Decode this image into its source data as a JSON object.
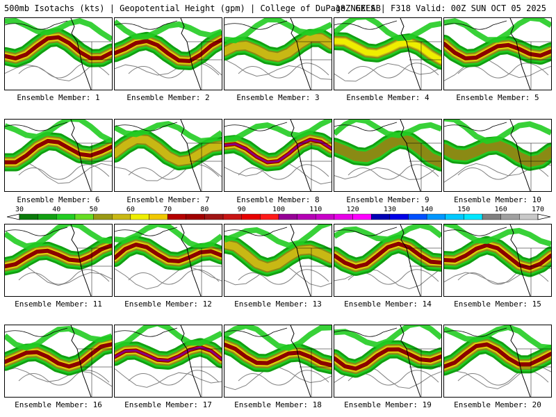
{
  "header": {
    "left_title": "500mb Isotachs (kts) | Geopotential Height (gpm) | College of DuPage NEXLAB",
    "right_title": "18Z GEFS | F318 Valid: 00Z SUN OCT 05 2025"
  },
  "panel_label_prefix": "Ensemble Member: ",
  "members": [
    {
      "label": "Ensemble Member: 1",
      "max_band": 6
    },
    {
      "label": "Ensemble Member: 2",
      "max_band": 6
    },
    {
      "label": "Ensemble Member: 3",
      "max_band": 4
    },
    {
      "label": "Ensemble Member: 4",
      "max_band": 5
    },
    {
      "label": "Ensemble Member: 5",
      "max_band": 6
    },
    {
      "label": "Ensemble Member: 6",
      "max_band": 6
    },
    {
      "label": "Ensemble Member: 7",
      "max_band": 4
    },
    {
      "label": "Ensemble Member: 8",
      "max_band": 8
    },
    {
      "label": "Ensemble Member: 9",
      "max_band": 3
    },
    {
      "label": "Ensemble Member: 10",
      "max_band": 3
    },
    {
      "label": "Ensemble Member: 11",
      "max_band": 6
    },
    {
      "label": "Ensemble Member: 12",
      "max_band": 6
    },
    {
      "label": "Ensemble Member: 13",
      "max_band": 4
    },
    {
      "label": "Ensemble Member: 14",
      "max_band": 6
    },
    {
      "label": "Ensemble Member: 15",
      "max_band": 6
    },
    {
      "label": "Ensemble Member: 16",
      "max_band": 6
    },
    {
      "label": "Ensemble Member: 17",
      "max_band": 8
    },
    {
      "label": "Ensemble Member: 18",
      "max_band": 6
    },
    {
      "label": "Ensemble Member: 19",
      "max_band": 6
    },
    {
      "label": "Ensemble Member: 20",
      "max_band": 6
    }
  ],
  "colorbar": {
    "ticks": [
      "30",
      "40",
      "50",
      "60",
      "70",
      "80",
      "90",
      "100",
      "110",
      "120",
      "130",
      "140",
      "150",
      "160",
      "170"
    ],
    "colors": [
      "#0a7a0a",
      "#12a012",
      "#22cc22",
      "#66dd22",
      "#9a9a14",
      "#c8b814",
      "#eeee00",
      "#f0c800",
      "#b40000",
      "#a00000",
      "#a01414",
      "#c81414",
      "#e60000",
      "#ff1a1a",
      "#960096",
      "#b400b4",
      "#c800c8",
      "#e600e6",
      "#ff00ff",
      "#0000b4",
      "#0000e6",
      "#0050ff",
      "#0096ff",
      "#00c8ff",
      "#00e6ff",
      "#808080",
      "#a0a0a0",
      "#c8c8c8"
    ]
  },
  "colors": {
    "height_contour": "#808080",
    "coastline": "#000000",
    "background": "#ffffff"
  }
}
